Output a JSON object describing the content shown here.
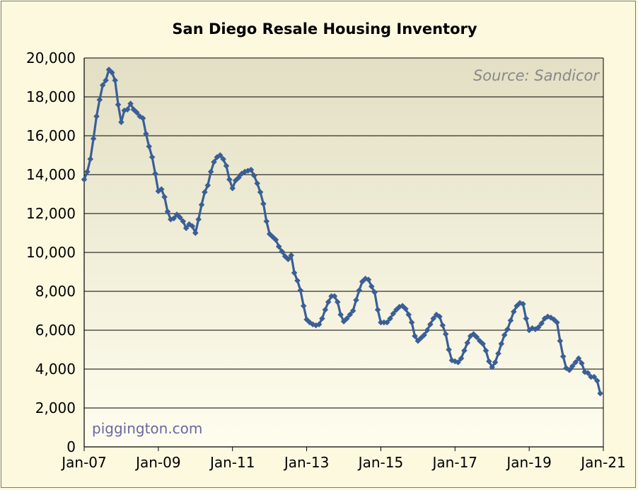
{
  "chart_data": {
    "type": "line",
    "title": "San Diego Resale Housing Inventory",
    "source": "Source: Sandicor",
    "watermark": "piggington.com",
    "xlabel": "",
    "ylabel": "",
    "ylim": [
      0,
      20000
    ],
    "yticks": [
      0,
      2000,
      4000,
      6000,
      8000,
      10000,
      12000,
      14000,
      16000,
      18000,
      20000
    ],
    "ytick_labels": [
      "0",
      "2,000",
      "4,000",
      "6,000",
      "8,000",
      "10,000",
      "12,000",
      "14,000",
      "16,000",
      "18,000",
      "20,000"
    ],
    "xtick_labels": [
      "Jan-07",
      "Jan-09",
      "Jan-11",
      "Jan-13",
      "Jan-15",
      "Jan-17",
      "Jan-19",
      "Jan-21"
    ],
    "x_start": "Jan-07",
    "x_end": "Jan-21",
    "grid": "horizontal",
    "legend": "none",
    "line_color": "#3a5f96",
    "marker": "diamond",
    "series": [
      {
        "values": [
          13750,
          14150,
          14800,
          15850,
          17000,
          17850,
          18600,
          18850,
          19400,
          19250,
          18850,
          17600,
          16700,
          17300,
          17350,
          17650,
          17350,
          17200,
          17000,
          16900,
          16100,
          15450,
          14900,
          14050,
          13150,
          13250,
          12850,
          12100,
          11700,
          11750,
          11950,
          11800,
          11600,
          11250,
          11450,
          11350,
          11000,
          11700,
          12450,
          13100,
          13450,
          14150,
          14650,
          14900,
          15000,
          14800,
          14450,
          13750,
          13300,
          13700,
          13850,
          14050,
          14150,
          14200,
          14250,
          13950,
          13550,
          13100,
          12500,
          11600,
          10950,
          10800,
          10650,
          10300,
          10050,
          9800,
          9650,
          9850,
          8950,
          8550,
          8050,
          7250,
          6550,
          6400,
          6300,
          6250,
          6300,
          6600,
          7050,
          7450,
          7750,
          7750,
          7450,
          6800,
          6450,
          6600,
          6800,
          7000,
          7550,
          8050,
          8500,
          8650,
          8600,
          8250,
          7950,
          7050,
          6400,
          6400,
          6400,
          6600,
          6850,
          7050,
          7200,
          7250,
          7100,
          6800,
          6400,
          5700,
          5450,
          5600,
          5750,
          6000,
          6300,
          6600,
          6800,
          6700,
          6250,
          5800,
          5000,
          4450,
          4400,
          4350,
          4550,
          4950,
          5350,
          5700,
          5800,
          5650,
          5450,
          5300,
          4950,
          4400,
          4100,
          4350,
          4800,
          5300,
          5750,
          6050,
          6500,
          6950,
          7250,
          7400,
          7350,
          6600,
          6000,
          6100,
          6050,
          6150,
          6350,
          6600,
          6700,
          6650,
          6550,
          6400,
          5450,
          4650,
          4050,
          3950,
          4150,
          4350,
          4550,
          4300,
          3850,
          3800,
          3600,
          3600,
          3400,
          2750
        ]
      }
    ]
  }
}
